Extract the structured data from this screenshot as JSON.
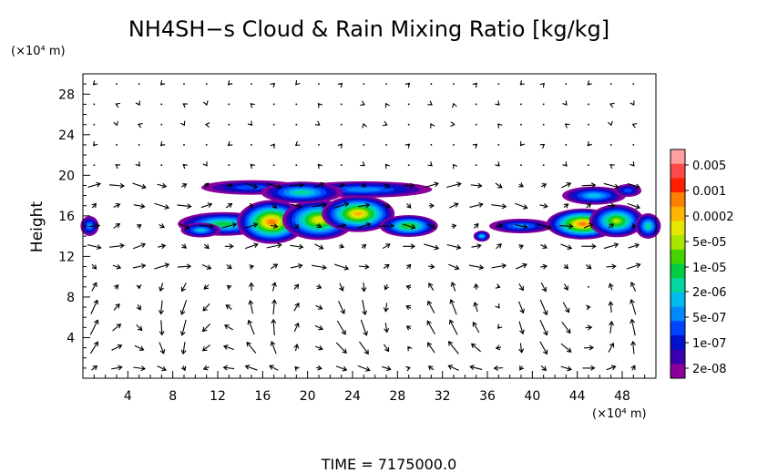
{
  "chart_data": {
    "type": "heatmap",
    "title": "NH4SH−s Cloud & Rain Mixing Ratio [kg/kg]",
    "ylabel": "Height",
    "yunit": "(×10⁴ m)",
    "xunit": "(×10⁴ m)",
    "footer": "TIME  =  7175000.0",
    "xlim": [
      0,
      51
    ],
    "ylim": [
      0,
      30
    ],
    "xticks": [
      "4",
      "8",
      "12",
      "16",
      "20",
      "24",
      "28",
      "32",
      "36",
      "40",
      "44",
      "48"
    ],
    "yticks": [
      "4",
      "8",
      "12",
      "16",
      "20",
      "24",
      "28"
    ],
    "colorbar": {
      "labels": [
        "0.005",
        "0.001",
        "0.0002",
        "5e-05",
        "1e-05",
        "2e-06",
        "5e-07",
        "1e-07",
        "2e-08"
      ],
      "colors": [
        "#ff9f9f",
        "#ff4a4a",
        "#ff1f00",
        "#ff7f00",
        "#ffb400",
        "#e6e600",
        "#a8e600",
        "#44d400",
        "#00cc44",
        "#00d8a0",
        "#00bbee",
        "#0088ff",
        "#0044ff",
        "#0011cc",
        "#3a00b0",
        "#8a009a"
      ]
    },
    "cloud_regions": [
      {
        "name": "left-edge",
        "x": [
          0,
          1.3
        ],
        "y": [
          13.8,
          16.0
        ],
        "peak": "5e-07"
      },
      {
        "name": "main",
        "x": [
          8.5,
          31.5
        ],
        "y": [
          13.0,
          19.5
        ],
        "peak": "0.0002"
      },
      {
        "name": "right",
        "x": [
          34.5,
          51
        ],
        "y": [
          13.0,
          19.3
        ],
        "peak": "0.0002"
      }
    ],
    "wind_field": "arrows"
  }
}
